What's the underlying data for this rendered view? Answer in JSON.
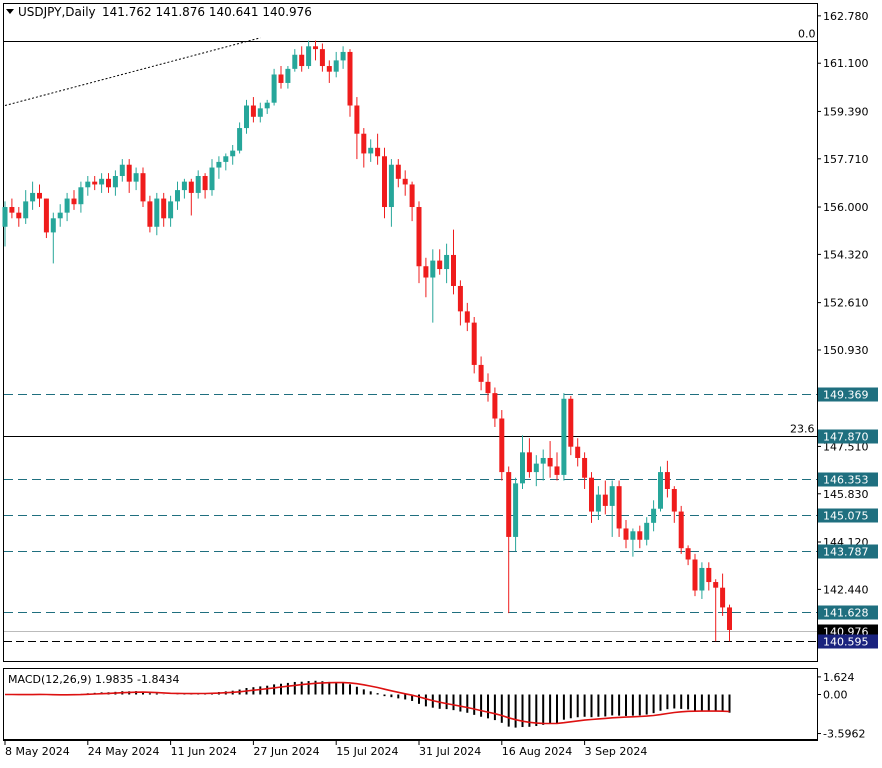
{
  "header": {
    "symbol": "USDJPY,Daily",
    "ohlc": "141.762 141.876 140.641 140.976"
  },
  "colors": {
    "bull": "#26a69a",
    "bear": "#ef1c1c",
    "level_line": "#1f6f7f",
    "macd_line": "#dd1111",
    "badge_bg": "#1f6f7f",
    "current_bg": "#000000",
    "low_bg": "#1a237e"
  },
  "chart_data": [
    {
      "type": "candlestick",
      "title": "USDJPY,Daily",
      "ylim": [
        139.9,
        163.2
      ],
      "y_ticks": [
        {
          "value": 162.78,
          "label": "162.780"
        },
        {
          "value": 161.1,
          "label": "161.100"
        },
        {
          "value": 159.39,
          "label": "159.390"
        },
        {
          "value": 157.71,
          "label": "157.710"
        },
        {
          "value": 156.0,
          "label": "156.000"
        },
        {
          "value": 154.32,
          "label": "154.320"
        },
        {
          "value": 152.61,
          "label": "152.610"
        },
        {
          "value": 150.93,
          "label": "150.930"
        },
        {
          "value": 147.51,
          "label": "147.510"
        },
        {
          "value": 145.83,
          "label": "145.830"
        },
        {
          "value": 144.12,
          "label": "144.120"
        },
        {
          "value": 142.44,
          "label": "142.440"
        }
      ],
      "x_ticks": [
        "8 May 2024",
        "24 May 2024",
        "11 Jun 2024",
        "27 Jun 2024",
        "15 Jul 2024",
        "31 Jul 2024",
        "16 Aug 2024",
        "3 Sep 2024"
      ],
      "x_tick_index": [
        0,
        12,
        24,
        36,
        48,
        60,
        72,
        84
      ],
      "levels": [
        {
          "value": 149.369,
          "label": "149.369",
          "style": "dashed"
        },
        {
          "value": 147.87,
          "label": "147.870",
          "style": "solid",
          "fib": "23.6"
        },
        {
          "value": 146.353,
          "label": "146.353",
          "style": "dashed"
        },
        {
          "value": 145.075,
          "label": "145.075",
          "style": "dashed"
        },
        {
          "value": 143.787,
          "label": "143.787",
          "style": "dashed"
        },
        {
          "value": 141.628,
          "label": "141.628",
          "style": "dashed"
        },
        {
          "value": 140.595,
          "label": "140.595",
          "style": "dashed-black"
        }
      ],
      "fib_top": {
        "value": 161.9,
        "label": "0.0"
      },
      "current_price": {
        "value": 140.976,
        "label": "140.976"
      },
      "low_price": {
        "value": 140.595,
        "label": "140.595"
      },
      "trendline": {
        "from": [
          0,
          159.6
        ],
        "to": [
          37,
          162.0
        ]
      },
      "candles": [
        [
          155.3,
          156.2,
          154.6,
          156.0
        ],
        [
          156.0,
          156.3,
          155.6,
          155.8
        ],
        [
          155.8,
          156.0,
          155.3,
          155.6
        ],
        [
          155.6,
          156.6,
          155.4,
          156.2
        ],
        [
          156.2,
          156.9,
          155.9,
          156.5
        ],
        [
          156.5,
          156.8,
          156.0,
          156.3
        ],
        [
          156.3,
          156.3,
          154.9,
          155.1
        ],
        [
          155.1,
          155.8,
          154.0,
          155.6
        ],
        [
          155.6,
          156.1,
          155.3,
          155.8
        ],
        [
          155.8,
          156.5,
          155.5,
          156.3
        ],
        [
          156.3,
          156.6,
          155.9,
          156.1
        ],
        [
          156.1,
          156.9,
          155.8,
          156.7
        ],
        [
          156.7,
          157.1,
          156.4,
          156.9
        ],
        [
          156.9,
          157.1,
          156.6,
          156.8
        ],
        [
          156.8,
          157.2,
          156.5,
          157.0
        ],
        [
          157.0,
          157.2,
          156.5,
          156.7
        ],
        [
          156.7,
          157.3,
          156.4,
          157.1
        ],
        [
          157.1,
          157.7,
          156.9,
          157.5
        ],
        [
          157.5,
          157.7,
          156.5,
          156.9
        ],
        [
          156.9,
          157.4,
          156.6,
          157.2
        ],
        [
          157.2,
          157.4,
          156.0,
          156.2
        ],
        [
          156.2,
          156.4,
          155.1,
          155.3
        ],
        [
          155.3,
          156.5,
          155.0,
          156.3
        ],
        [
          156.3,
          156.5,
          155.3,
          155.6
        ],
        [
          155.6,
          156.4,
          155.3,
          156.2
        ],
        [
          156.2,
          156.9,
          155.9,
          156.6
        ],
        [
          156.6,
          157.0,
          156.3,
          156.9
        ],
        [
          156.9,
          157.0,
          155.7,
          156.5
        ],
        [
          156.5,
          157.3,
          156.3,
          157.1
        ],
        [
          157.1,
          157.2,
          156.3,
          156.6
        ],
        [
          156.6,
          157.7,
          156.4,
          157.4
        ],
        [
          157.4,
          157.8,
          157.0,
          157.6
        ],
        [
          157.6,
          157.9,
          157.3,
          157.8
        ],
        [
          157.8,
          158.2,
          157.5,
          158.0
        ],
        [
          158.0,
          159.0,
          157.9,
          158.8
        ],
        [
          158.8,
          159.8,
          158.6,
          159.6
        ],
        [
          159.6,
          159.9,
          159.0,
          159.2
        ],
        [
          159.2,
          159.7,
          159.0,
          159.5
        ],
        [
          159.5,
          159.8,
          159.3,
          159.7
        ],
        [
          159.7,
          160.9,
          159.6,
          160.7
        ],
        [
          160.7,
          161.0,
          160.2,
          160.4
        ],
        [
          160.4,
          161.0,
          160.2,
          160.9
        ],
        [
          160.9,
          161.6,
          160.8,
          161.4
        ],
        [
          161.4,
          161.7,
          160.8,
          161.0
        ],
        [
          161.0,
          161.9,
          160.9,
          161.7
        ],
        [
          161.7,
          161.9,
          161.2,
          161.6
        ],
        [
          161.6,
          161.8,
          160.8,
          161.0
        ],
        [
          161.0,
          161.2,
          160.4,
          160.8
        ],
        [
          160.8,
          161.5,
          160.6,
          161.2
        ],
        [
          161.2,
          161.7,
          160.9,
          161.5
        ],
        [
          161.5,
          161.6,
          159.2,
          159.6
        ],
        [
          159.6,
          159.9,
          157.7,
          158.6
        ],
        [
          158.6,
          158.8,
          157.4,
          157.9
        ],
        [
          157.9,
          158.4,
          157.6,
          158.1
        ],
        [
          158.1,
          158.6,
          157.5,
          157.8
        ],
        [
          157.8,
          158.1,
          155.6,
          156.0
        ],
        [
          156.0,
          157.7,
          155.3,
          157.5
        ],
        [
          157.5,
          157.7,
          156.7,
          157.0
        ],
        [
          157.0,
          157.3,
          156.4,
          156.8
        ],
        [
          156.8,
          156.9,
          155.5,
          156.0
        ],
        [
          156.0,
          156.2,
          153.3,
          153.9
        ],
        [
          153.9,
          154.2,
          152.8,
          153.5
        ],
        [
          153.5,
          154.5,
          151.9,
          154.1
        ],
        [
          154.1,
          154.5,
          153.6,
          153.8
        ],
        [
          153.8,
          154.7,
          153.3,
          154.3
        ],
        [
          154.3,
          155.2,
          152.9,
          153.2
        ],
        [
          153.2,
          153.4,
          151.8,
          152.3
        ],
        [
          152.3,
          152.6,
          151.6,
          151.9
        ],
        [
          151.9,
          152.1,
          150.1,
          150.4
        ],
        [
          150.4,
          150.7,
          149.5,
          149.8
        ],
        [
          149.8,
          150.1,
          149.1,
          149.4
        ],
        [
          149.4,
          149.6,
          148.2,
          148.5
        ],
        [
          148.5,
          148.8,
          146.3,
          146.6
        ],
        [
          146.6,
          146.8,
          141.6,
          144.3
        ],
        [
          144.3,
          146.4,
          143.8,
          146.2
        ],
        [
          146.2,
          147.9,
          146.0,
          147.3
        ],
        [
          147.3,
          147.8,
          146.4,
          146.6
        ],
        [
          146.6,
          147.2,
          146.1,
          146.9
        ],
        [
          146.9,
          147.4,
          146.3,
          147.1
        ],
        [
          147.1,
          147.7,
          146.4,
          146.8
        ],
        [
          146.8,
          147.3,
          146.3,
          146.5
        ],
        [
          146.5,
          149.4,
          146.3,
          149.2
        ],
        [
          149.2,
          149.3,
          147.2,
          147.5
        ],
        [
          147.5,
          147.8,
          146.8,
          147.1
        ],
        [
          147.1,
          147.3,
          146.0,
          146.4
        ],
        [
          146.4,
          146.6,
          144.8,
          145.2
        ],
        [
          145.2,
          146.1,
          144.9,
          145.8
        ],
        [
          145.8,
          146.3,
          145.1,
          145.4
        ],
        [
          145.4,
          146.3,
          144.3,
          146.1
        ],
        [
          146.1,
          146.3,
          144.3,
          144.6
        ],
        [
          144.6,
          144.9,
          143.9,
          144.2
        ],
        [
          144.2,
          144.6,
          143.6,
          144.5
        ],
        [
          144.5,
          144.7,
          143.9,
          144.2
        ],
        [
          144.2,
          145.0,
          144.0,
          144.8
        ],
        [
          144.8,
          145.6,
          144.5,
          145.3
        ],
        [
          145.3,
          146.8,
          145.2,
          146.6
        ],
        [
          146.6,
          147.0,
          145.7,
          146.0
        ],
        [
          146.0,
          146.1,
          144.8,
          145.2
        ],
        [
          145.2,
          145.4,
          143.7,
          143.9
        ],
        [
          143.9,
          144.0,
          143.3,
          143.5
        ],
        [
          143.5,
          143.7,
          142.2,
          142.4
        ],
        [
          142.4,
          143.4,
          142.1,
          143.2
        ],
        [
          143.2,
          143.4,
          142.4,
          142.7
        ],
        [
          142.7,
          142.8,
          140.6,
          142.5
        ],
        [
          142.5,
          143.0,
          141.5,
          141.8
        ],
        [
          141.8,
          141.9,
          140.6,
          141.0
        ]
      ]
    },
    {
      "type": "histogram+line",
      "title": "MACD(12,26,9) 1.9835 -1.8434",
      "y_ticks": [
        {
          "value": 1.624,
          "label": "1.624"
        },
        {
          "value": 0.0,
          "label": "0.00"
        },
        {
          "value": -3.5962,
          "label": "-3.5962"
        }
      ],
      "ylim": [
        -4.1,
        2.35
      ]
    }
  ]
}
